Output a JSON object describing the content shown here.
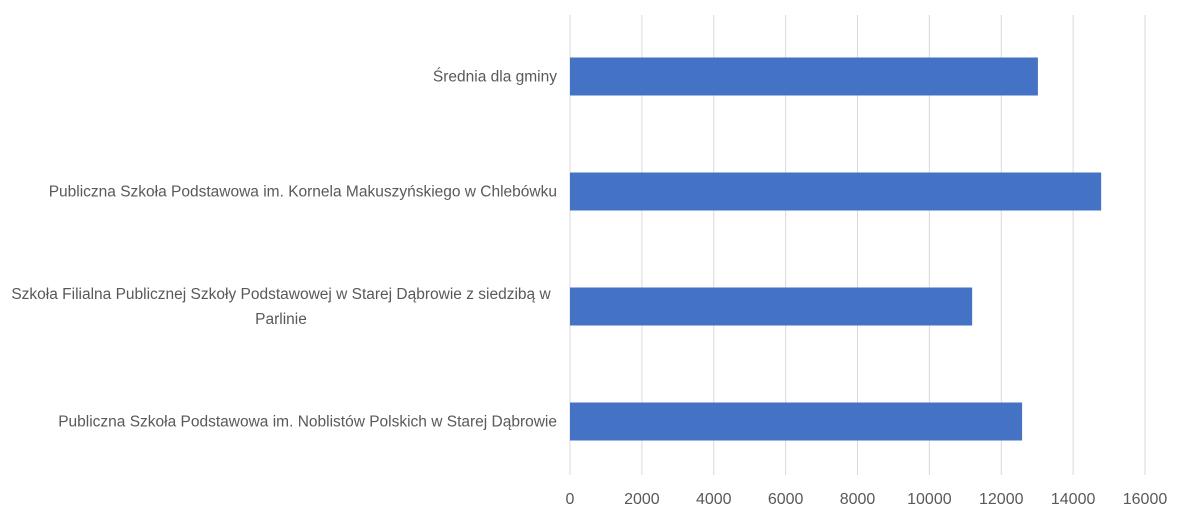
{
  "chart_data": {
    "type": "bar",
    "orientation": "horizontal",
    "categories": [
      "Średnia dla gminy",
      "Publiczna Szkoła Podstawowa im. Kornela Makuszyńskiego w Chlebówku",
      "Szkoła Filialna Publicznej Szkoły Podstawowej w Starej Dąbrowie z siedzibą w Parlinie",
      "Publiczna Szkoła Podstawowa im. Noblistów Polskich w Starej Dąbrowie"
    ],
    "values": [
      13020,
      14780,
      11190,
      12580
    ],
    "color": "#4472c4",
    "xlim": [
      0,
      16000
    ],
    "xticks": [
      0,
      2000,
      4000,
      6000,
      8000,
      10000,
      12000,
      14000,
      16000
    ],
    "grid": true
  }
}
